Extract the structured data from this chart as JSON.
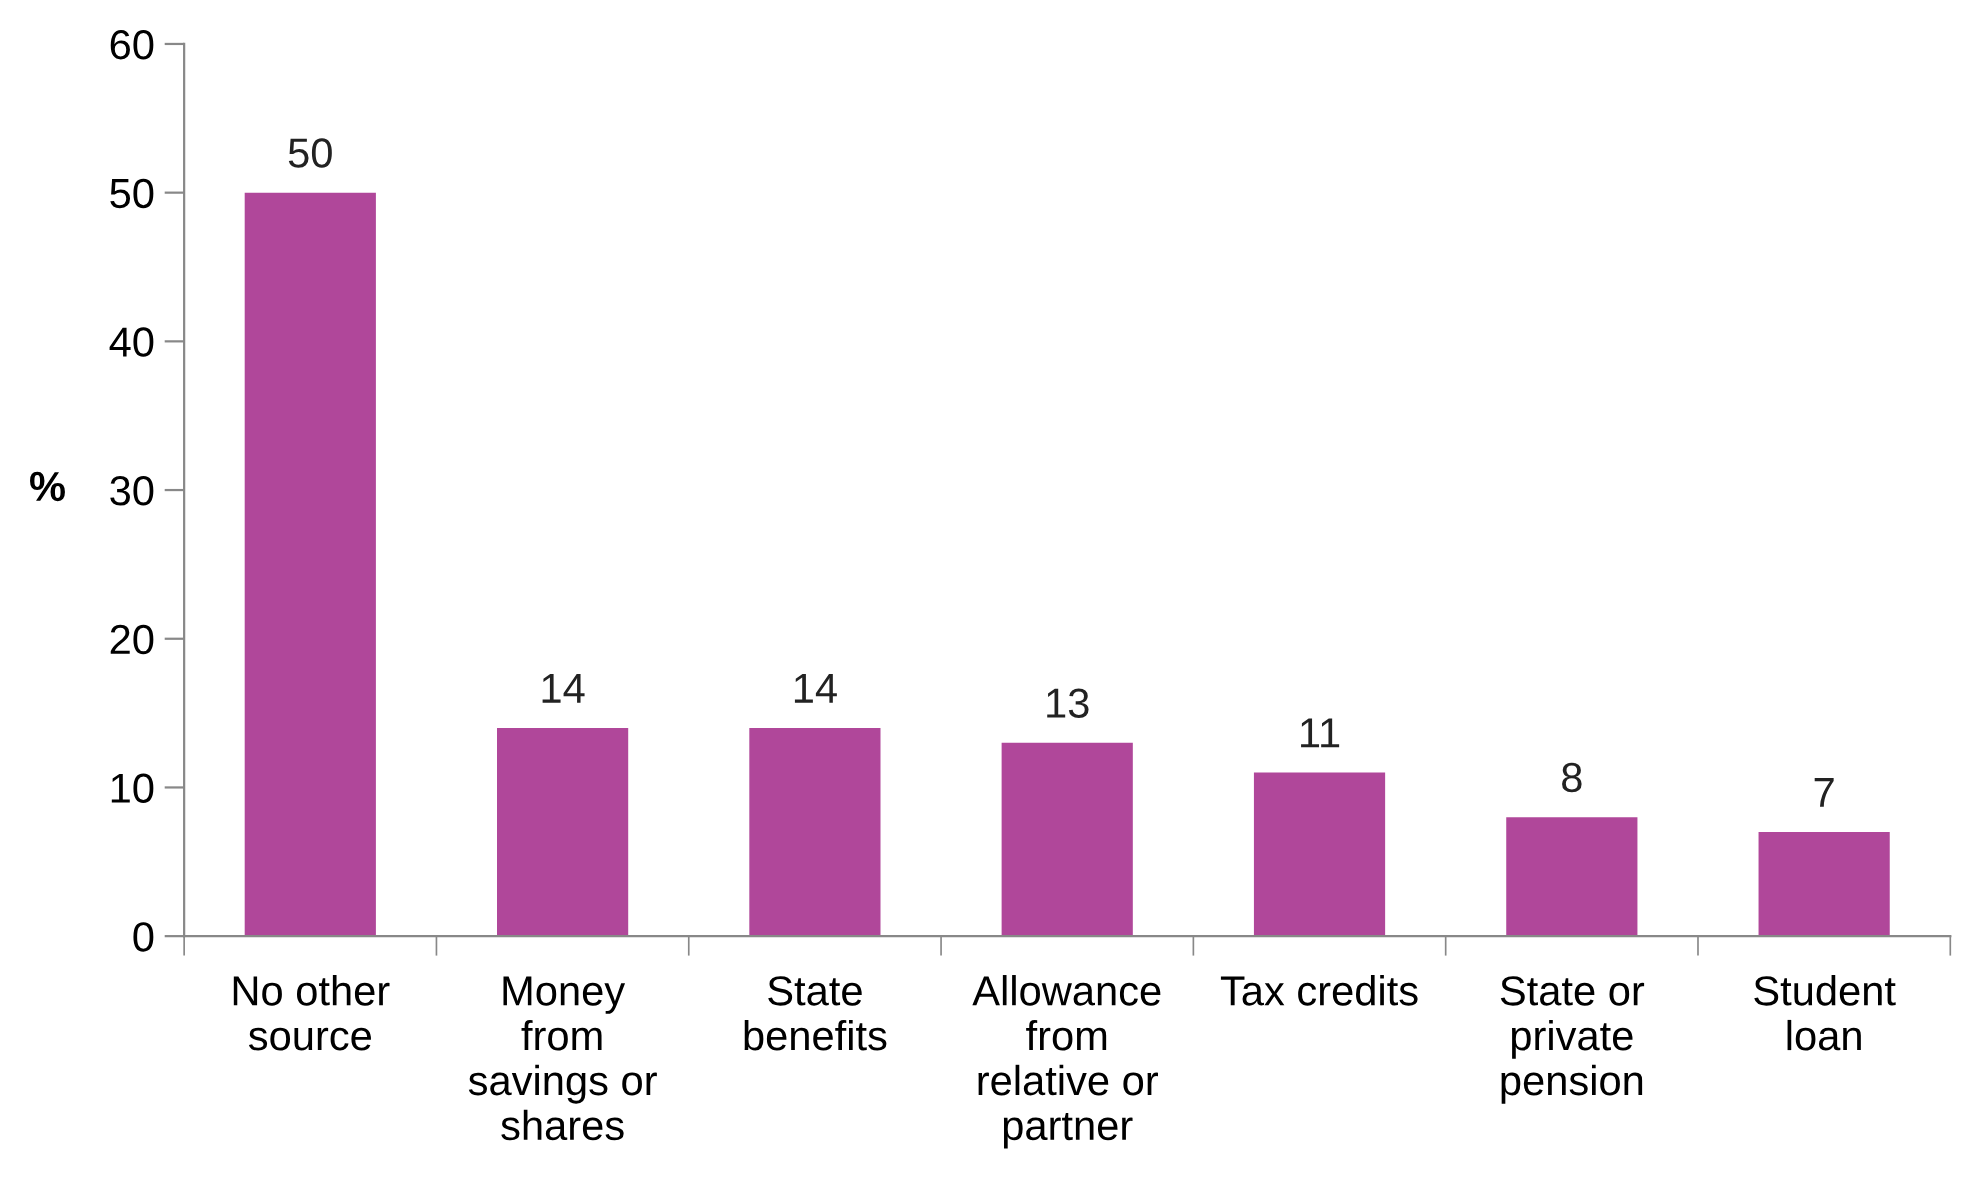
{
  "chart_data": {
    "type": "bar",
    "ylabel": "%",
    "categories": [
      "No other\nsource",
      "Money\nfrom\nsavings or\nshares",
      "State\nbenefits",
      "Allowance\nfrom\nrelative or\npartner",
      "Tax credits",
      "State or\nprivate\npension",
      "Student\nloan"
    ],
    "values": [
      50,
      14,
      14,
      13,
      11,
      8,
      7
    ],
    "color": "#b0479a",
    "ylim": [
      0,
      60
    ],
    "yticks": [
      0,
      10,
      20,
      30,
      40,
      50,
      60
    ],
    "data_labels": true,
    "grid": false,
    "legend": false
  }
}
